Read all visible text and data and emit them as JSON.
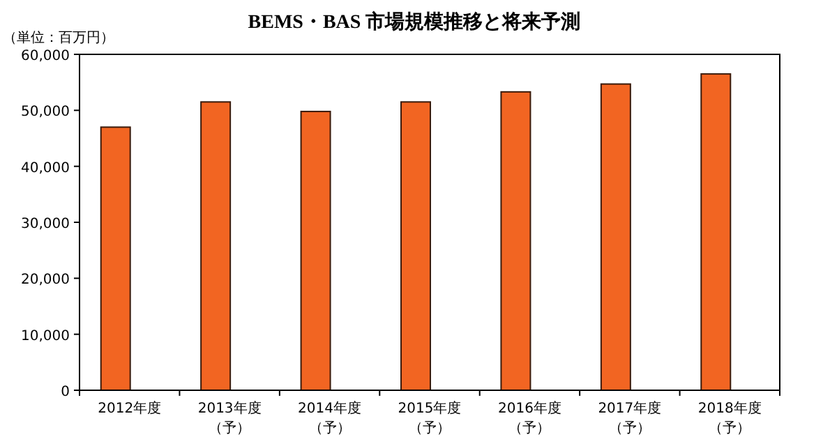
{
  "chart_data": {
    "type": "bar",
    "title": "BEMS・BAS 市場規模推移と将来予測",
    "ylabel": "（単位：百万円）",
    "categories": [
      "2012年度",
      "2013年度（予）",
      "2014年度（予）",
      "2015年度（予）",
      "2016年度（予）",
      "2017年度（予）",
      "2018年度（予）"
    ],
    "values": [
      47000,
      51500,
      49800,
      51500,
      53300,
      54700,
      56500
    ],
    "color": "#f26522",
    "ylim": [
      0,
      60000
    ],
    "yticks": [
      {
        "value": 0,
        "label": "0"
      },
      {
        "value": 10000,
        "label": "10,000"
      },
      {
        "value": 20000,
        "label": "20,000"
      },
      {
        "value": 30000,
        "label": "30,000"
      },
      {
        "value": 40000,
        "label": "40,000"
      },
      {
        "value": 50000,
        "label": "50,000"
      },
      {
        "value": 60000,
        "label": "60,000"
      }
    ],
    "grid": false
  }
}
